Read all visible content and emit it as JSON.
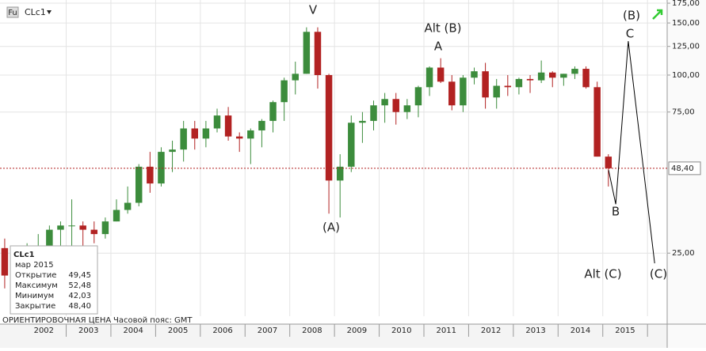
{
  "header": {
    "icon": "Fu",
    "symbol": "CLc1"
  },
  "chart_data": {
    "type": "candlestick",
    "xlim": [
      2001.52,
      2016.44
    ],
    "xticks": [
      {
        "value": 2002.5,
        "label": "2002"
      },
      {
        "value": 2003.5,
        "label": "2003"
      },
      {
        "value": 2004.5,
        "label": "2004"
      },
      {
        "value": 2005.5,
        "label": "2005"
      },
      {
        "value": 2006.5,
        "label": "2006"
      },
      {
        "value": 2007.5,
        "label": "2007"
      },
      {
        "value": 2008.5,
        "label": "2008"
      },
      {
        "value": 2009.5,
        "label": "2009"
      },
      {
        "value": 2010.5,
        "label": "2010"
      },
      {
        "value": 2011.5,
        "label": "2011"
      },
      {
        "value": 2012.5,
        "label": "2012"
      },
      {
        "value": 2013.5,
        "label": "2013"
      },
      {
        "value": 2014.5,
        "label": "2014"
      },
      {
        "value": 2015.5,
        "label": "2015"
      }
    ],
    "ylim": [
      15.3,
      179.4
    ],
    "log_scale": true,
    "grid": true,
    "yticks": [
      {
        "value": 175,
        "label": "175,00"
      },
      {
        "value": 150,
        "label": "150,00"
      },
      {
        "value": 125,
        "label": "125,00"
      },
      {
        "value": 100,
        "label": "100,00"
      },
      {
        "value": 75,
        "label": "75,00"
      },
      {
        "value": 25,
        "label": "25,00"
      }
    ],
    "up_color": "#3c8c3c",
    "down_color": "#b22222",
    "x": [
      2001.625,
      2001.875,
      2002.125,
      2002.375,
      2002.625,
      2002.875,
      2003.125,
      2003.375,
      2003.625,
      2003.875,
      2004.125,
      2004.375,
      2004.625,
      2004.875,
      2005.125,
      2005.375,
      2005.625,
      2005.875,
      2006.125,
      2006.375,
      2006.625,
      2006.875,
      2007.125,
      2007.375,
      2007.625,
      2007.875,
      2008.125,
      2008.375,
      2008.625,
      2008.875,
      2009.125,
      2009.375,
      2009.625,
      2009.875,
      2010.125,
      2010.375,
      2010.625,
      2010.875,
      2011.125,
      2011.375,
      2011.625,
      2011.875,
      2012.125,
      2012.375,
      2012.625,
      2012.875,
      2013.125,
      2013.375,
      2013.625,
      2013.875,
      2014.125,
      2014.375,
      2014.625,
      2014.875,
      2015.125
    ],
    "open": [
      26,
      21,
      20,
      26,
      26,
      30,
      31,
      31,
      30,
      29,
      32,
      35,
      37,
      49,
      43,
      55,
      56,
      66,
      61,
      66,
      73,
      62,
      61,
      65,
      70,
      81,
      96,
      101,
      140,
      100,
      44,
      49,
      69,
      70,
      79,
      83,
      75,
      79,
      91,
      106,
      95,
      79,
      98,
      103,
      84,
      92,
      91,
      97,
      96,
      102,
      98,
      101,
      105,
      91,
      53
    ],
    "high": [
      28,
      23,
      27,
      29,
      31,
      32,
      38,
      32,
      32,
      33,
      38,
      42,
      50,
      55,
      57,
      60,
      70,
      70,
      70,
      77,
      78,
      64,
      66,
      71,
      82,
      98,
      111,
      145,
      145,
      101,
      54,
      73,
      75,
      82,
      87,
      87,
      83,
      92,
      107,
      114,
      100,
      100,
      106,
      110,
      97,
      100,
      98,
      100,
      112,
      103,
      101,
      107,
      107,
      95,
      54
    ],
    "low": [
      19,
      17,
      18,
      24,
      25,
      26,
      26,
      25,
      27,
      28,
      32,
      34,
      36,
      40,
      42,
      47,
      51,
      56,
      57,
      64,
      60,
      55,
      50,
      57,
      64,
      70,
      86,
      101,
      90,
      34,
      33,
      47,
      59,
      65,
      69,
      68,
      71,
      72,
      85,
      94,
      76,
      75,
      93,
      77,
      77,
      85,
      86,
      87,
      94,
      91,
      92,
      97,
      90,
      53,
      42
    ],
    "close": [
      21,
      20,
      26,
      26,
      30,
      31,
      31,
      30,
      29,
      32,
      35,
      37,
      49,
      43,
      55,
      56,
      66,
      61,
      66,
      73,
      62,
      61,
      65,
      70,
      81,
      96,
      101,
      140,
      100,
      44,
      49,
      69,
      70,
      79,
      83,
      75,
      79,
      91,
      106,
      95,
      79,
      98,
      103,
      84,
      92,
      91,
      97,
      96,
      102,
      98,
      101,
      105,
      91,
      53,
      48.4
    ],
    "last_price": {
      "value": 48.4,
      "label": "48,40"
    },
    "projection": {
      "color": "#000",
      "x": [
        2015.13,
        2015.29,
        2015.57,
        2016.16
      ],
      "values": [
        47.7,
        36.6,
        130.2,
        23.1
      ]
    },
    "annotations": [
      "V",
      "Alt (B)",
      "A",
      "(A)",
      "(B)",
      "C",
      "B",
      "Alt (C)",
      "(C)"
    ]
  },
  "info_box": {
    "symbol": "CLc1",
    "date": "мар 2015",
    "rows": [
      [
        "Открытие",
        "49,45"
      ],
      [
        "Максимум",
        "52,48"
      ],
      [
        "Минимум",
        "42,03"
      ],
      [
        "Закрытие",
        "48,40"
      ]
    ]
  },
  "footer": {
    "price_note": "ОРИЕНТИРОВОЧНАЯ ЦЕНА",
    "timezone": "Часовой пояс: GMT"
  }
}
